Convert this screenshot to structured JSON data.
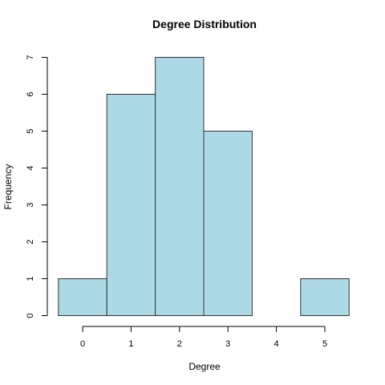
{
  "chart_data": {
    "type": "bar",
    "title": "Degree Distribution",
    "xlabel": "Degree",
    "ylabel": "Frequency",
    "categories": [
      "0",
      "1",
      "2",
      "3",
      "4",
      "5"
    ],
    "x": [
      0,
      1,
      2,
      3,
      4,
      5
    ],
    "values": [
      1,
      6,
      7,
      5,
      0,
      1
    ],
    "xlim": [
      -0.5,
      5.5
    ],
    "ylim": [
      0,
      7
    ],
    "y_ticks": [
      0,
      1,
      2,
      3,
      4,
      5,
      6,
      7
    ],
    "x_ticks": [
      0,
      1,
      2,
      3,
      4,
      5
    ],
    "bar_color": "#ADD8E6",
    "bar_border_color": "#333333",
    "grid": false,
    "legend": "none"
  }
}
